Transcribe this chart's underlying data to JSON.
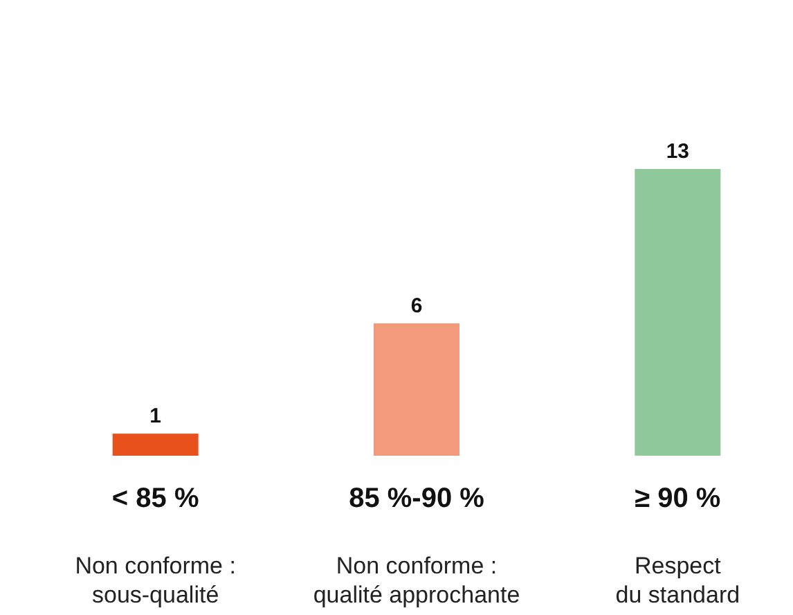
{
  "chart_data": {
    "type": "bar",
    "categories": [
      "< 85 %",
      "85 %-90 %",
      "≥ 90 %"
    ],
    "values": [
      1,
      6,
      13
    ],
    "colors": [
      "#e8501c",
      "#f29b7c",
      "#8fc99b"
    ],
    "data_labels": true,
    "annotations": [
      "Non conforme :\nsous-qualité",
      "Non conforme :\nqualité approchante",
      "Respect\ndu standard"
    ]
  }
}
